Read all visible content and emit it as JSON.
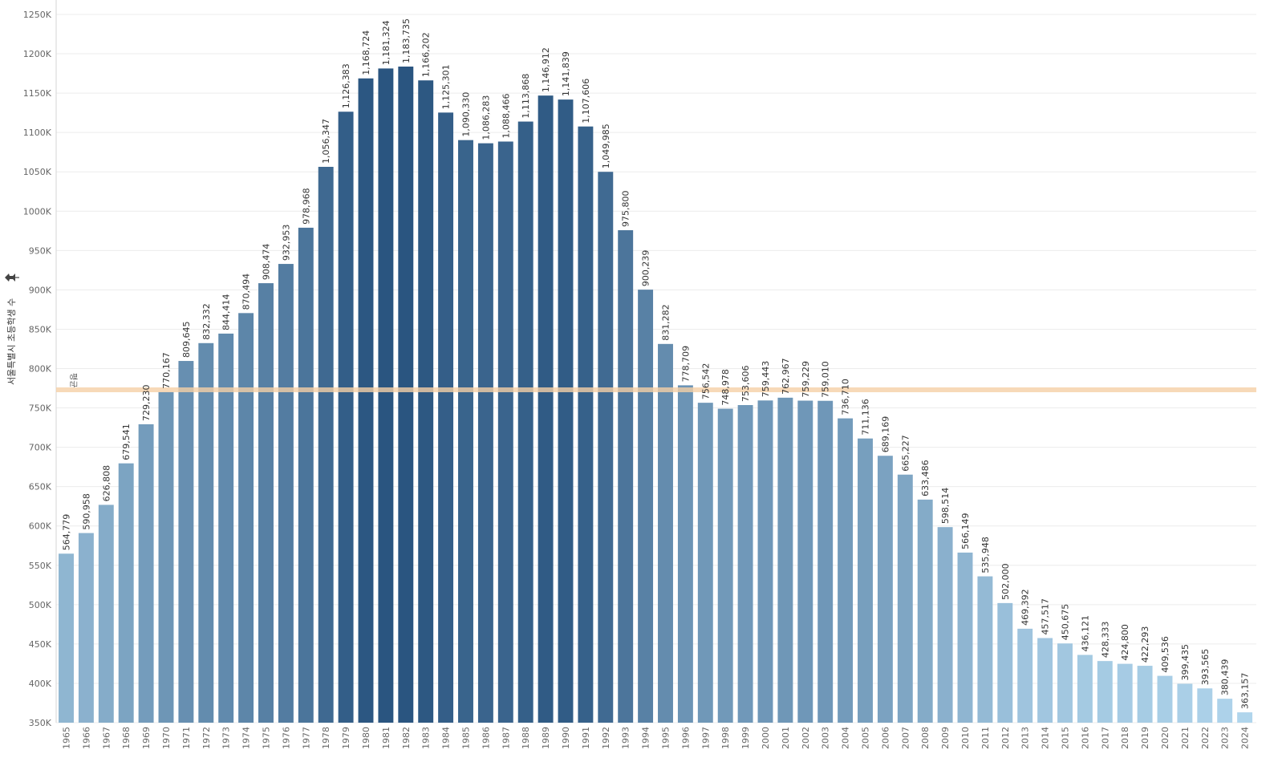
{
  "chart_data": {
    "type": "bar",
    "ylabel": "서울특별시 초등학생 수",
    "ylabel_icon": "pin-icon",
    "ylim": [
      350000,
      1250000
    ],
    "yticks": [
      350000,
      400000,
      450000,
      500000,
      550000,
      600000,
      650000,
      700000,
      750000,
      800000,
      850000,
      900000,
      950000,
      1000000,
      1050000,
      1100000,
      1150000,
      1200000,
      1250000
    ],
    "ytick_labels": [
      "350K",
      "400K",
      "450K",
      "500K",
      "550K",
      "600K",
      "650K",
      "700K",
      "750K",
      "800K",
      "850K",
      "900K",
      "950K",
      "1000K",
      "1050K",
      "1100K",
      "1150K",
      "1200K",
      "1250K"
    ],
    "categories": [
      "1965",
      "1966",
      "1967",
      "1968",
      "1969",
      "1970",
      "1971",
      "1972",
      "1973",
      "1974",
      "1975",
      "1976",
      "1977",
      "1978",
      "1979",
      "1980",
      "1981",
      "1982",
      "1983",
      "1984",
      "1985",
      "1986",
      "1987",
      "1988",
      "1989",
      "1990",
      "1991",
      "1992",
      "1993",
      "1994",
      "1995",
      "1996",
      "1997",
      "1998",
      "1999",
      "2000",
      "2001",
      "2002",
      "2003",
      "2004",
      "2005",
      "2006",
      "2007",
      "2008",
      "2009",
      "2010",
      "2011",
      "2012",
      "2013",
      "2014",
      "2015",
      "2016",
      "2017",
      "2018",
      "2019",
      "2020",
      "2021",
      "2022",
      "2023",
      "2024"
    ],
    "values": [
      564779,
      590958,
      626808,
      679541,
      729230,
      770167,
      809645,
      832332,
      844414,
      870494,
      908474,
      932953,
      978968,
      1056347,
      1126383,
      1168724,
      1181324,
      1183735,
      1166202,
      1125301,
      1090330,
      1086283,
      1088466,
      1113868,
      1146912,
      1141839,
      1107606,
      1049985,
      975800,
      900239,
      831282,
      778709,
      756542,
      748978,
      753606,
      759443,
      762967,
      759229,
      759010,
      736710,
      711136,
      689169,
      665227,
      633486,
      598514,
      566149,
      535948,
      502000,
      469392,
      457517,
      450675,
      436121,
      428333,
      424800,
      422293,
      409536,
      399435,
      393565,
      380439,
      363157
    ],
    "data_labels": [
      "564,779",
      "590,958",
      "626,808",
      "679,541",
      "729,230",
      "770,167",
      "809,645",
      "832,332",
      "844,414",
      "870,494",
      "908,474",
      "932,953",
      "978,968",
      "1,056,347",
      "1,126,383",
      "1,168,724",
      "1,181,324",
      "1,183,735",
      "1,166,202",
      "1,125,301",
      "1,090,330",
      "1,086,283",
      "1,088,466",
      "1,113,868",
      "1,146,912",
      "1,141,839",
      "1,107,606",
      "1,049,985",
      "975,800",
      "900,239",
      "831,282",
      "778,709",
      "756,542",
      "748,978",
      "753,606",
      "759,443",
      "762,967",
      "759,229",
      "759,010",
      "736,710",
      "711,136",
      "689,169",
      "665,227",
      "633,486",
      "598,514",
      "566,149",
      "535,948",
      "502,000",
      "469,392",
      "457,517",
      "450,675",
      "436,121",
      "428,333",
      "424,800",
      "422,293",
      "409,536",
      "399,435",
      "393,565",
      "380,439",
      "363,157"
    ],
    "reference_line": {
      "label": "평균",
      "value": 773000,
      "color": "#f5cfa6"
    },
    "color_scale": {
      "low": "#b0d5ec",
      "high": "#2a5580"
    },
    "grid": true
  }
}
